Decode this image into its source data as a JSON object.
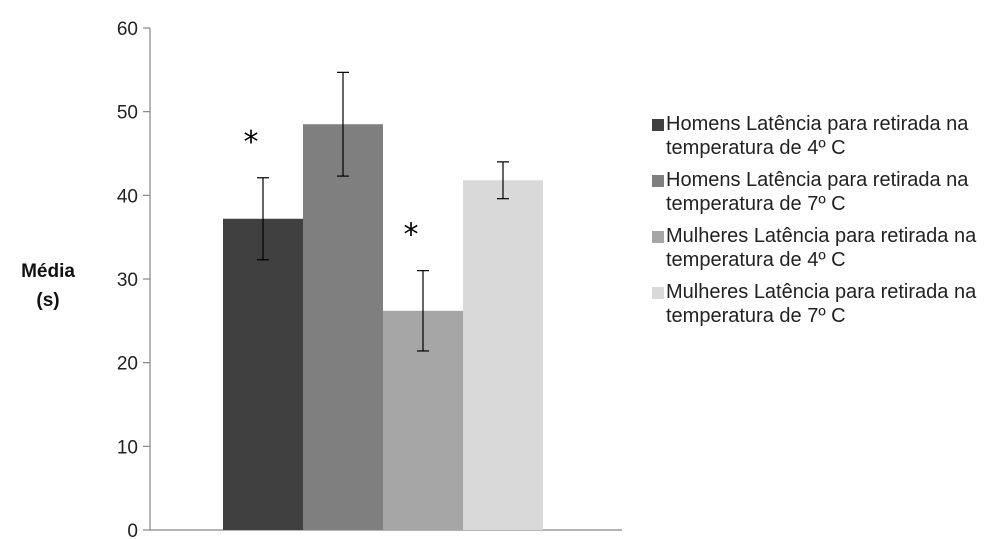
{
  "chart_data": {
    "type": "bar",
    "title": "",
    "xlabel": "",
    "ylabel_lines": [
      "Média",
      "(s)"
    ],
    "ylim": [
      0,
      60
    ],
    "yticks": [
      0,
      10,
      20,
      30,
      40,
      50,
      60
    ],
    "series": [
      {
        "name": "Homens Latência para retirada na temperatura de 4º C",
        "value": 37.2,
        "error": 4.9,
        "color": "#404040",
        "annotation": "*"
      },
      {
        "name": "Homens Latência para retirada na temperatura de 7º C",
        "value": 48.5,
        "error": 6.2,
        "color": "#7f7f7f",
        "annotation": ""
      },
      {
        "name": "Mulheres Latência para retirada na temperatura de 4º C",
        "value": 26.2,
        "error": 4.8,
        "color": "#a6a6a6",
        "annotation": "*"
      },
      {
        "name": "Mulheres Latência para retirada na temperatura de 7º C",
        "value": 41.8,
        "error": 2.2,
        "color": "#d9d9d9",
        "annotation": ""
      }
    ],
    "legend_position": "right",
    "grid": false
  }
}
